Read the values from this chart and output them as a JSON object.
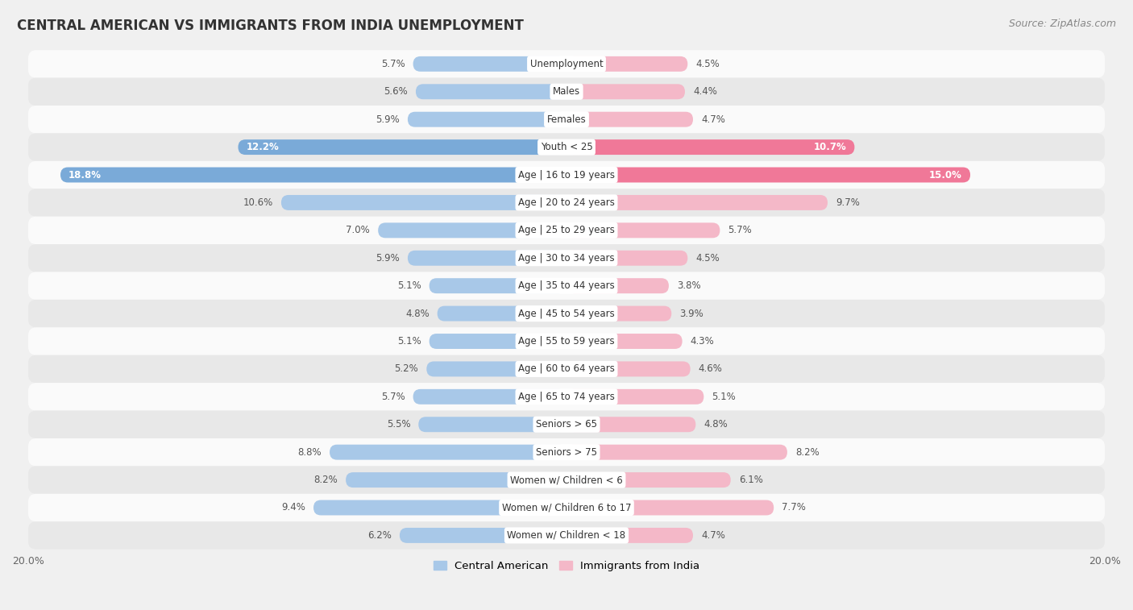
{
  "title": "CENTRAL AMERICAN VS IMMIGRANTS FROM INDIA UNEMPLOYMENT",
  "source": "Source: ZipAtlas.com",
  "categories": [
    "Unemployment",
    "Males",
    "Females",
    "Youth < 25",
    "Age | 16 to 19 years",
    "Age | 20 to 24 years",
    "Age | 25 to 29 years",
    "Age | 30 to 34 years",
    "Age | 35 to 44 years",
    "Age | 45 to 54 years",
    "Age | 55 to 59 years",
    "Age | 60 to 64 years",
    "Age | 65 to 74 years",
    "Seniors > 65",
    "Seniors > 75",
    "Women w/ Children < 6",
    "Women w/ Children 6 to 17",
    "Women w/ Children < 18"
  ],
  "central_american": [
    5.7,
    5.6,
    5.9,
    12.2,
    18.8,
    10.6,
    7.0,
    5.9,
    5.1,
    4.8,
    5.1,
    5.2,
    5.7,
    5.5,
    8.8,
    8.2,
    9.4,
    6.2
  ],
  "india": [
    4.5,
    4.4,
    4.7,
    10.7,
    15.0,
    9.7,
    5.7,
    4.5,
    3.8,
    3.9,
    4.3,
    4.6,
    5.1,
    4.8,
    8.2,
    6.1,
    7.7,
    4.7
  ],
  "color_central_normal": "#a8c8e8",
  "color_india_normal": "#f4b8c8",
  "color_central_highlight": "#7aaad8",
  "color_india_highlight": "#f07898",
  "highlight_rows": [
    3,
    4
  ],
  "axis_limit": 20.0,
  "bar_height": 0.55,
  "background_color": "#f0f0f0",
  "row_color_light": "#fafafa",
  "row_color_dark": "#e8e8e8",
  "label_fontsize": 8.5,
  "value_fontsize": 8.5,
  "title_fontsize": 12,
  "source_fontsize": 9
}
